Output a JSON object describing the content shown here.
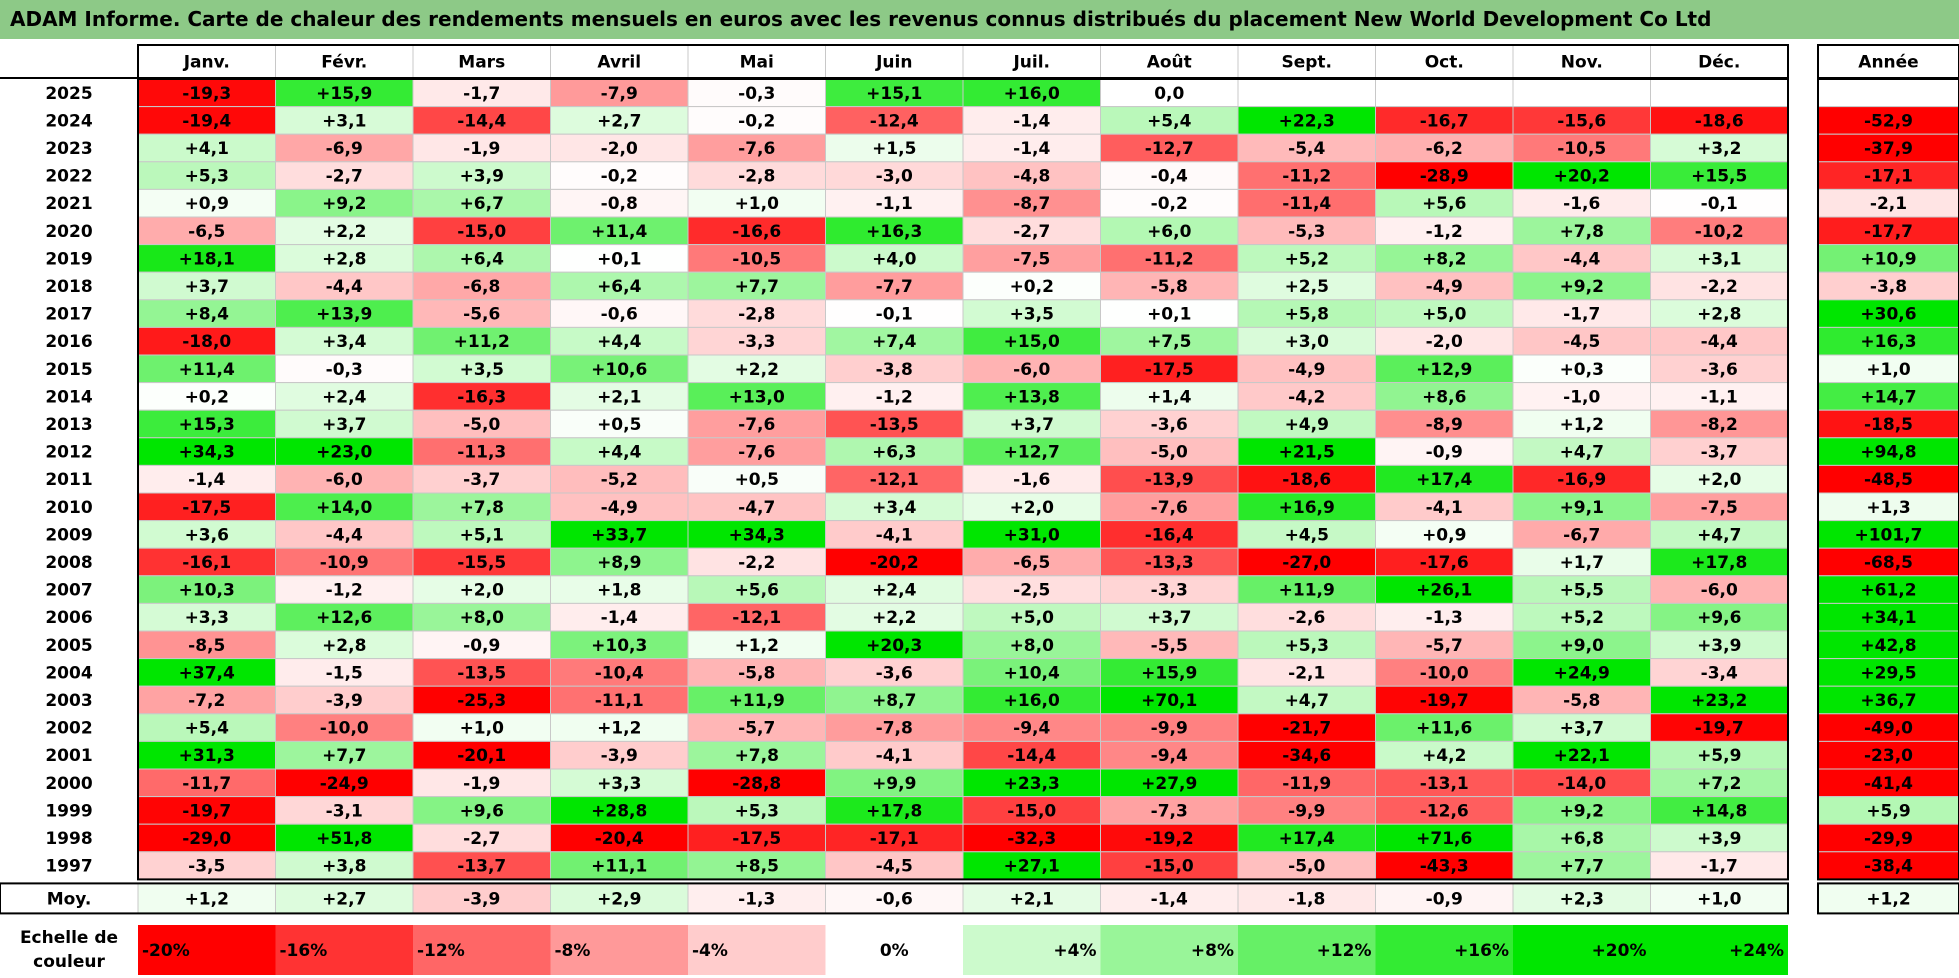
{
  "title": "ADAM Informe. Carte de chaleur des rendements mensuels en euros avec les revenus connus distribués du placement New World Development Co Ltd",
  "chart_data": {
    "type": "heatmap",
    "months": [
      "Janv.",
      "Févr.",
      "Mars",
      "Avril",
      "Mai",
      "Juin",
      "Juil.",
      "Août",
      "Sept.",
      "Oct.",
      "Nov.",
      "Déc."
    ],
    "year_header": "Année",
    "rows": [
      {
        "year": "2025",
        "values": [
          "-19,3",
          "+15,9",
          "-1,7",
          "-7,9",
          "-0,3",
          "+15,1",
          "+16,0",
          "0,0",
          "",
          "",
          "",
          ""
        ],
        "annual": ""
      },
      {
        "year": "2024",
        "values": [
          "-19,4",
          "+3,1",
          "-14,4",
          "+2,7",
          "-0,2",
          "-12,4",
          "-1,4",
          "+5,4",
          "+22,3",
          "-16,7",
          "-15,6",
          "-18,6"
        ],
        "annual": "-52,9"
      },
      {
        "year": "2023",
        "values": [
          "+4,1",
          "-6,9",
          "-1,9",
          "-2,0",
          "-7,6",
          "+1,5",
          "-1,4",
          "-12,7",
          "-5,4",
          "-6,2",
          "-10,5",
          "+3,2"
        ],
        "annual": "-37,9"
      },
      {
        "year": "2022",
        "values": [
          "+5,3",
          "-2,7",
          "+3,9",
          "-0,2",
          "-2,8",
          "-3,0",
          "-4,8",
          "-0,4",
          "-11,2",
          "-28,9",
          "+20,2",
          "+15,5"
        ],
        "annual": "-17,1"
      },
      {
        "year": "2021",
        "values": [
          "+0,9",
          "+9,2",
          "+6,7",
          "-0,8",
          "+1,0",
          "-1,1",
          "-8,7",
          "-0,2",
          "-11,4",
          "+5,6",
          "-1,6",
          "-0,1"
        ],
        "annual": "-2,1"
      },
      {
        "year": "2020",
        "values": [
          "-6,5",
          "+2,2",
          "-15,0",
          "+11,4",
          "-16,6",
          "+16,3",
          "-2,7",
          "+6,0",
          "-5,3",
          "-1,2",
          "+7,8",
          "-10,2"
        ],
        "annual": "-17,7"
      },
      {
        "year": "2019",
        "values": [
          "+18,1",
          "+2,8",
          "+6,4",
          "+0,1",
          "-10,5",
          "+4,0",
          "-7,5",
          "-11,2",
          "+5,2",
          "+8,2",
          "-4,4",
          "+3,1"
        ],
        "annual": "+10,9"
      },
      {
        "year": "2018",
        "values": [
          "+3,7",
          "-4,4",
          "-6,8",
          "+6,4",
          "+7,7",
          "-7,7",
          "+0,2",
          "-5,8",
          "+2,5",
          "-4,9",
          "+9,2",
          "-2,2"
        ],
        "annual": "-3,8"
      },
      {
        "year": "2017",
        "values": [
          "+8,4",
          "+13,9",
          "-5,6",
          "-0,6",
          "-2,8",
          "-0,1",
          "+3,5",
          "+0,1",
          "+5,8",
          "+5,0",
          "-1,7",
          "+2,8"
        ],
        "annual": "+30,6"
      },
      {
        "year": "2016",
        "values": [
          "-18,0",
          "+3,4",
          "+11,2",
          "+4,4",
          "-3,3",
          "+7,4",
          "+15,0",
          "+7,5",
          "+3,0",
          "-2,0",
          "-4,5",
          "-4,4"
        ],
        "annual": "+16,3"
      },
      {
        "year": "2015",
        "values": [
          "+11,4",
          "-0,3",
          "+3,5",
          "+10,6",
          "+2,2",
          "-3,8",
          "-6,0",
          "-17,5",
          "-4,9",
          "+12,9",
          "+0,3",
          "-3,6"
        ],
        "annual": "+1,0"
      },
      {
        "year": "2014",
        "values": [
          "+0,2",
          "+2,4",
          "-16,3",
          "+2,1",
          "+13,0",
          "-1,2",
          "+13,8",
          "+1,4",
          "-4,2",
          "+8,6",
          "-1,0",
          "-1,1"
        ],
        "annual": "+14,7"
      },
      {
        "year": "2013",
        "values": [
          "+15,3",
          "+3,7",
          "-5,0",
          "+0,5",
          "-7,6",
          "-13,5",
          "+3,7",
          "-3,6",
          "+4,9",
          "-8,9",
          "+1,2",
          "-8,2"
        ],
        "annual": "-18,5"
      },
      {
        "year": "2012",
        "values": [
          "+34,3",
          "+23,0",
          "-11,3",
          "+4,4",
          "-7,6",
          "+6,3",
          "+12,7",
          "-5,0",
          "+21,5",
          "-0,9",
          "+4,7",
          "-3,7"
        ],
        "annual": "+94,8"
      },
      {
        "year": "2011",
        "values": [
          "-1,4",
          "-6,0",
          "-3,7",
          "-5,2",
          "+0,5",
          "-12,1",
          "-1,6",
          "-13,9",
          "-18,6",
          "+17,4",
          "-16,9",
          "+2,0"
        ],
        "annual": "-48,5"
      },
      {
        "year": "2010",
        "values": [
          "-17,5",
          "+14,0",
          "+7,8",
          "-4,9",
          "-4,7",
          "+3,4",
          "+2,0",
          "-7,6",
          "+16,9",
          "-4,1",
          "+9,1",
          "-7,5"
        ],
        "annual": "+1,3"
      },
      {
        "year": "2009",
        "values": [
          "+3,6",
          "-4,4",
          "+5,1",
          "+33,7",
          "+34,3",
          "-4,1",
          "+31,0",
          "-16,4",
          "+4,5",
          "+0,9",
          "-6,7",
          "+4,7"
        ],
        "annual": "+101,7"
      },
      {
        "year": "2008",
        "values": [
          "-16,1",
          "-10,9",
          "-15,5",
          "+8,9",
          "-2,2",
          "-20,2",
          "-6,5",
          "-13,3",
          "-27,0",
          "-17,6",
          "+1,7",
          "+17,8"
        ],
        "annual": "-68,5"
      },
      {
        "year": "2007",
        "values": [
          "+10,3",
          "-1,2",
          "+2,0",
          "+1,8",
          "+5,6",
          "+2,4",
          "-2,5",
          "-3,3",
          "+11,9",
          "+26,1",
          "+5,5",
          "-6,0"
        ],
        "annual": "+61,2"
      },
      {
        "year": "2006",
        "values": [
          "+3,3",
          "+12,6",
          "+8,0",
          "-1,4",
          "-12,1",
          "+2,2",
          "+5,0",
          "+3,7",
          "-2,6",
          "-1,3",
          "+5,2",
          "+9,6"
        ],
        "annual": "+34,1"
      },
      {
        "year": "2005",
        "values": [
          "-8,5",
          "+2,8",
          "-0,9",
          "+10,3",
          "+1,2",
          "+20,3",
          "+8,0",
          "-5,5",
          "+5,3",
          "-5,7",
          "+9,0",
          "+3,9"
        ],
        "annual": "+42,8"
      },
      {
        "year": "2004",
        "values": [
          "+37,4",
          "-1,5",
          "-13,5",
          "-10,4",
          "-5,8",
          "-3,6",
          "+10,4",
          "+15,9",
          "-2,1",
          "-10,0",
          "+24,9",
          "-3,4"
        ],
        "annual": "+29,5"
      },
      {
        "year": "2003",
        "values": [
          "-7,2",
          "-3,9",
          "-25,3",
          "-11,1",
          "+11,9",
          "+8,7",
          "+16,0",
          "+70,1",
          "+4,7",
          "-19,7",
          "-5,8",
          "+23,2"
        ],
        "annual": "+36,7"
      },
      {
        "year": "2002",
        "values": [
          "+5,4",
          "-10,0",
          "+1,0",
          "+1,2",
          "-5,7",
          "-7,8",
          "-9,4",
          "-9,9",
          "-21,7",
          "+11,6",
          "+3,7",
          "-19,7"
        ],
        "annual": "-49,0"
      },
      {
        "year": "2001",
        "values": [
          "+31,3",
          "+7,7",
          "-20,1",
          "-3,9",
          "+7,8",
          "-4,1",
          "-14,4",
          "-9,4",
          "-34,6",
          "+4,2",
          "+22,1",
          "+5,9"
        ],
        "annual": "-23,0"
      },
      {
        "year": "2000",
        "values": [
          "-11,7",
          "-24,9",
          "-1,9",
          "+3,3",
          "-28,8",
          "+9,9",
          "+23,3",
          "+27,9",
          "-11,9",
          "-13,1",
          "-14,0",
          "+7,2"
        ],
        "annual": "-41,4"
      },
      {
        "year": "1999",
        "values": [
          "-19,7",
          "-3,1",
          "+9,6",
          "+28,8",
          "+5,3",
          "+17,8",
          "-15,0",
          "-7,3",
          "-9,9",
          "-12,6",
          "+9,2",
          "+14,8"
        ],
        "annual": "+5,9"
      },
      {
        "year": "1998",
        "values": [
          "-29,0",
          "+51,8",
          "-2,7",
          "-20,4",
          "-17,5",
          "-17,1",
          "-32,3",
          "-19,2",
          "+17,4",
          "+71,6",
          "+6,8",
          "+3,9"
        ],
        "annual": "-29,9"
      },
      {
        "year": "1997",
        "values": [
          "-3,5",
          "+3,8",
          "-13,7",
          "+11,1",
          "+8,5",
          "-4,5",
          "+27,1",
          "-15,0",
          "-5,0",
          "-43,3",
          "+7,7",
          "-1,7"
        ],
        "annual": "-38,4"
      }
    ],
    "average": {
      "label": "Moy.",
      "values": [
        "+1,2",
        "+2,7",
        "-3,9",
        "+2,9",
        "-1,3",
        "-0,6",
        "+2,1",
        "-1,4",
        "-1,8",
        "-0,9",
        "+2,3",
        "+1,0"
      ],
      "annual": "+1,2"
    },
    "scale": {
      "label_line1": "Echelle de",
      "label_line2": "couleur",
      "steps": [
        {
          "label": "-20%",
          "value": -20
        },
        {
          "label": "-16%",
          "value": -16
        },
        {
          "label": "-12%",
          "value": -12
        },
        {
          "label": "-8%",
          "value": -8
        },
        {
          "label": "-4%",
          "value": -4
        },
        {
          "label": "0%",
          "value": 0
        },
        {
          "label": "+4%",
          "value": 4
        },
        {
          "label": "+8%",
          "value": 8
        },
        {
          "label": "+12%",
          "value": 12
        },
        {
          "label": "+16%",
          "value": 16
        },
        {
          "label": "+20%",
          "value": 20
        },
        {
          "label": "+24%",
          "value": 24
        }
      ]
    },
    "colors": {
      "negative": "#ff0000",
      "zero": "#ffffff",
      "positive": "#00e600",
      "title_bg": "#8dc987",
      "grid": "#c8c8c8",
      "border": "#000000"
    }
  }
}
